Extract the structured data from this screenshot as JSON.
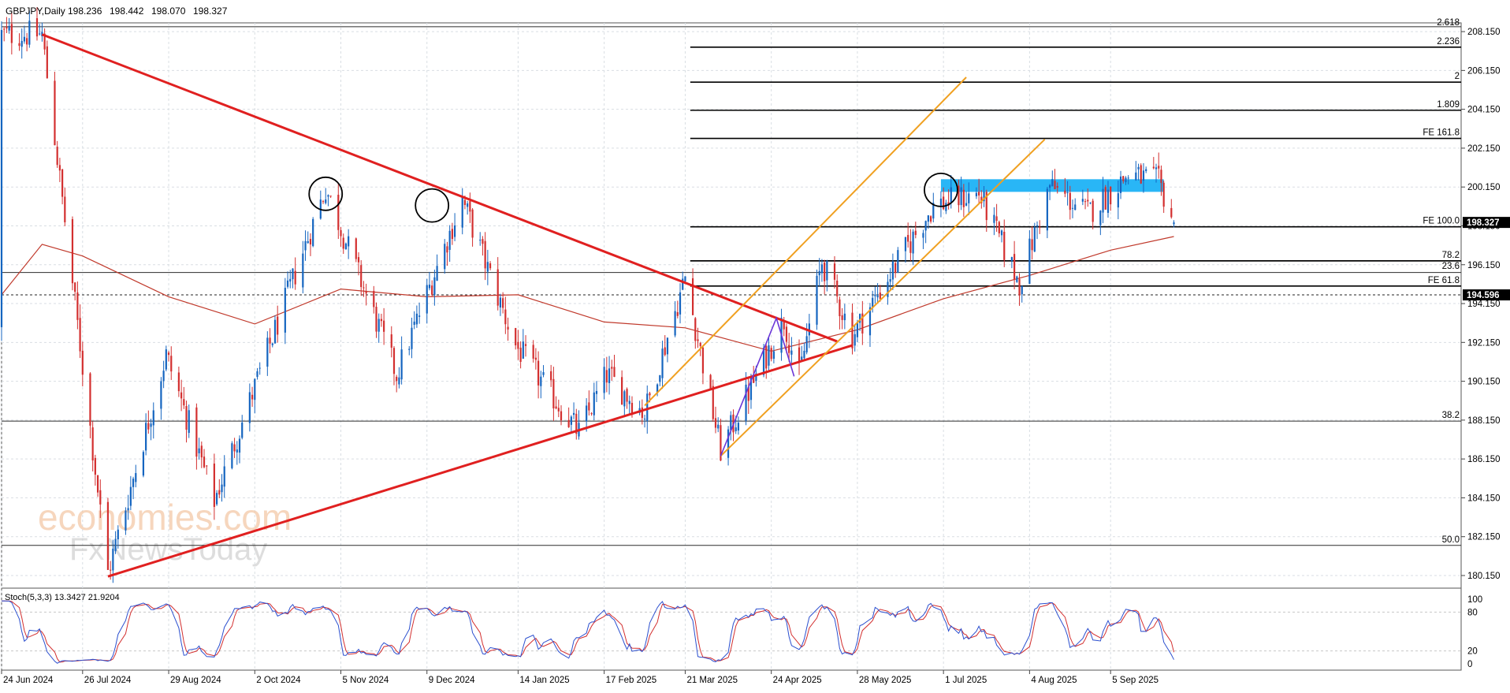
{
  "chart_data": {
    "type": "candlestick",
    "symbol_label": "GBPJPY,Daily",
    "ohlc_header": [
      "198.236",
      "198.442",
      "198.070",
      "198.327"
    ],
    "ylim": [
      179.5,
      208.6
    ],
    "price_ticks": [
      "208.150",
      "206.150",
      "204.150",
      "202.150",
      "200.150",
      "198.150",
      "196.150",
      "194.150",
      "192.150",
      "190.150",
      "188.150",
      "186.150",
      "184.150",
      "182.150",
      "180.150"
    ],
    "date_ticks": [
      "24 Jun 2024",
      "26 Jul 2024",
      "29 Aug 2024",
      "2 Oct 2024",
      "5 Nov 2024",
      "9 Dec 2024",
      "14 Jan 2025",
      "17 Feb 2025",
      "21 Mar 2025",
      "24 Apr 2025",
      "28 May 2025",
      "1 Jul 2025",
      "4 Aug 2025",
      "5 Sep 2025"
    ],
    "current_price_label": "198.327",
    "dashed_price_label": "194.596",
    "dashed_price": 194.596,
    "colors": {
      "bull": "#1565c0",
      "bear": "#d32f2f",
      "trendline": "#e02020",
      "channel": "#f0a020",
      "ma": "#c0392b",
      "highlight": "#29b6f6",
      "stoch_main": "#2b4fcf",
      "stoch_signal": "#d32f2f"
    },
    "fib_levels": [
      {
        "label": "2.618",
        "price": 208.4
      },
      {
        "label": "2.236",
        "price": 207.35
      },
      {
        "label": "2",
        "price": 205.55
      },
      {
        "label": "1.809",
        "price": 204.1
      },
      {
        "label": "FE 161.8",
        "price": 202.65
      },
      {
        "label": "FE 100.0",
        "price": 198.1
      },
      {
        "label": "78.2",
        "price": 196.35
      },
      {
        "label": "23.6",
        "price": 196.35
      },
      {
        "label": "FE 61.8",
        "price": 195.05
      },
      {
        "label": "38.2",
        "price": 188.1
      },
      {
        "label": "50.0",
        "price": 181.7
      }
    ],
    "horizontal_lines": [
      208.4,
      195.75,
      188.1,
      181.7
    ],
    "stoch_label": "Stoch(5,3,3) 13.3427 21.9204",
    "stoch_levels": [
      "100",
      "80",
      "20",
      "0"
    ],
    "key_points": [
      {
        "date": "2024-07-10",
        "price": 208.0
      },
      {
        "date": "2024-08-05",
        "price": 180.3
      },
      {
        "date": "2024-08-28",
        "price": 191.5
      },
      {
        "date": "2024-09-16",
        "price": 184.0
      },
      {
        "date": "2024-10-30",
        "price": 200.1
      },
      {
        "date": "2024-11-27",
        "price": 190.5
      },
      {
        "date": "2024-12-23",
        "price": 199.5
      },
      {
        "date": "2025-01-13",
        "price": 192.0
      },
      {
        "date": "2025-02-07",
        "price": 187.5
      },
      {
        "date": "2025-02-18",
        "price": 190.5
      },
      {
        "date": "2025-03-05",
        "price": 188.5
      },
      {
        "date": "2025-03-21",
        "price": 195.5
      },
      {
        "date": "2025-04-04",
        "price": 186.6
      },
      {
        "date": "2025-04-22",
        "price": 191.5
      },
      {
        "date": "2025-04-29",
        "price": 193.3
      },
      {
        "date": "2025-05-05",
        "price": 190.4
      },
      {
        "date": "2025-05-14",
        "price": 196.3
      },
      {
        "date": "2025-05-26",
        "price": 192.5
      },
      {
        "date": "2025-06-13",
        "price": 196.3
      },
      {
        "date": "2025-06-27",
        "price": 199.2
      },
      {
        "date": "2025-07-15",
        "price": 199.8
      },
      {
        "date": "2025-07-31",
        "price": 195.2
      },
      {
        "date": "2025-08-12",
        "price": 200.2
      },
      {
        "date": "2025-08-27",
        "price": 198.8
      },
      {
        "date": "2025-09-12",
        "price": 200.8
      },
      {
        "date": "2025-09-24",
        "price": 200.4
      },
      {
        "date": "2025-09-30",
        "price": 198.33
      }
    ],
    "ma_points": [
      {
        "date": "2024-06-24",
        "price": 194.6
      },
      {
        "date": "2024-07-10",
        "price": 197.2
      },
      {
        "date": "2024-07-26",
        "price": 196.6
      },
      {
        "date": "2024-08-29",
        "price": 194.5
      },
      {
        "date": "2024-10-02",
        "price": 193.1
      },
      {
        "date": "2024-11-05",
        "price": 194.9
      },
      {
        "date": "2024-12-09",
        "price": 194.5
      },
      {
        "date": "2025-01-14",
        "price": 194.6
      },
      {
        "date": "2025-02-17",
        "price": 193.2
      },
      {
        "date": "2025-03-21",
        "price": 192.9
      },
      {
        "date": "2025-04-24",
        "price": 191.7
      },
      {
        "date": "2025-05-28",
        "price": 192.8
      },
      {
        "date": "2025-07-01",
        "price": 194.4
      },
      {
        "date": "2025-08-04",
        "price": 195.6
      },
      {
        "date": "2025-09-05",
        "price": 196.9
      },
      {
        "date": "2025-09-30",
        "price": 197.6
      }
    ],
    "trendlines": [
      {
        "kind": "descending-resistance",
        "from": {
          "date": "2024-07-10",
          "price": 208.0
        },
        "to": {
          "date": "2025-05-20",
          "price": 192.2
        }
      },
      {
        "kind": "ascending-support",
        "from": {
          "date": "2024-08-05",
          "price": 180.1
        },
        "to": {
          "date": "2025-05-26",
          "price": 192.0
        }
      }
    ],
    "channel_lines": [
      {
        "from": {
          "date": "2025-03-05",
          "price": 188.9
        },
        "to": {
          "date": "2025-07-10",
          "price": 205.8
        }
      },
      {
        "from": {
          "date": "2025-04-04",
          "price": 186.3
        },
        "to": {
          "date": "2025-08-10",
          "price": 202.6
        }
      }
    ],
    "zigzag": [
      {
        "date": "2025-04-04",
        "price": 186.3
      },
      {
        "date": "2025-04-26",
        "price": 193.4
      },
      {
        "date": "2025-05-03",
        "price": 190.4
      }
    ],
    "circles": [
      {
        "date": "2024-10-30",
        "price": 199.8
      },
      {
        "date": "2024-12-11",
        "price": 199.2
      },
      {
        "date": "2025-06-30",
        "price": 200.0
      }
    ],
    "resistance_zone": {
      "from": "2025-06-30",
      "to": "2025-09-26",
      "top": 200.55,
      "bottom": 199.9
    }
  }
}
